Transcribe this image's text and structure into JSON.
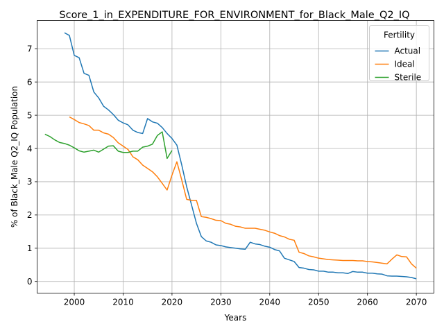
{
  "chart_data": {
    "type": "line",
    "title": "Score_1_in_EXPENDITURE_FOR_ENVIRONMENT_for_Black_Male_Q2_IQ",
    "xlabel": "Years",
    "ylabel": "% of Black_Male Q2_IQ Population",
    "xlim": [
      1992.4,
      2073.6
    ],
    "ylim": [
      -0.35,
      7.85
    ],
    "xticks": [
      2000,
      2010,
      2020,
      2030,
      2040,
      2050,
      2060,
      2070
    ],
    "yticks": [
      0,
      1,
      2,
      3,
      4,
      5,
      6,
      7
    ],
    "grid": true,
    "legend": {
      "title": "Fertility",
      "placement": "top-right"
    },
    "series": [
      {
        "name": "Actual",
        "color": "#1f77b4",
        "x": [
          1998,
          1999,
          2000,
          2001,
          2002,
          2003,
          2004,
          2005,
          2006,
          2007,
          2008,
          2009,
          2010,
          2011,
          2012,
          2013,
          2014,
          2015,
          2016,
          2017,
          2018,
          2019,
          2020,
          2021,
          2022,
          2023,
          2024,
          2025,
          2026,
          2027,
          2028,
          2029,
          2030,
          2031,
          2032,
          2033,
          2034,
          2035,
          2036,
          2037,
          2038,
          2039,
          2040,
          2041,
          2042,
          2043,
          2044,
          2045,
          2046,
          2047,
          2048,
          2049,
          2050,
          2051,
          2052,
          2053,
          2054,
          2055,
          2056,
          2057,
          2058,
          2059,
          2060,
          2061,
          2062,
          2063,
          2064,
          2065,
          2066,
          2067,
          2068,
          2069,
          2070
        ],
        "values": [
          7.48,
          7.4,
          6.8,
          6.73,
          6.26,
          6.2,
          5.7,
          5.52,
          5.27,
          5.16,
          5.02,
          4.85,
          4.77,
          4.71,
          4.55,
          4.48,
          4.45,
          4.9,
          4.8,
          4.76,
          4.63,
          4.45,
          4.3,
          4.1,
          3.5,
          2.85,
          2.3,
          1.75,
          1.35,
          1.22,
          1.18,
          1.1,
          1.08,
          1.04,
          1.02,
          1.0,
          0.98,
          0.97,
          1.18,
          1.13,
          1.11,
          1.06,
          1.03,
          0.96,
          0.92,
          0.7,
          0.65,
          0.6,
          0.42,
          0.4,
          0.36,
          0.35,
          0.31,
          0.31,
          0.28,
          0.28,
          0.26,
          0.26,
          0.24,
          0.3,
          0.28,
          0.28,
          0.25,
          0.25,
          0.23,
          0.22,
          0.17,
          0.16,
          0.16,
          0.15,
          0.14,
          0.12,
          0.08
        ]
      },
      {
        "name": "Ideal",
        "color": "#ff7f0e",
        "x": [
          1999,
          2000,
          2001,
          2002,
          2003,
          2004,
          2005,
          2006,
          2007,
          2008,
          2009,
          2010,
          2011,
          2012,
          2013,
          2014,
          2015,
          2016,
          2017,
          2018,
          2019,
          2020,
          2021,
          2022,
          2023,
          2024,
          2025,
          2026,
          2027,
          2028,
          2029,
          2030,
          2031,
          2032,
          2033,
          2034,
          2035,
          2036,
          2037,
          2038,
          2039,
          2040,
          2041,
          2042,
          2043,
          2044,
          2045,
          2046,
          2047,
          2048,
          2049,
          2050,
          2051,
          2052,
          2053,
          2054,
          2055,
          2056,
          2057,
          2058,
          2059,
          2060,
          2061,
          2062,
          2063,
          2064,
          2065,
          2066,
          2067,
          2068,
          2069,
          2070
        ],
        "values": [
          4.95,
          4.87,
          4.78,
          4.74,
          4.69,
          4.55,
          4.55,
          4.47,
          4.43,
          4.33,
          4.17,
          4.07,
          3.97,
          3.75,
          3.66,
          3.5,
          3.4,
          3.3,
          3.15,
          2.95,
          2.75,
          3.2,
          3.6,
          3.05,
          2.47,
          2.44,
          2.44,
          1.95,
          1.93,
          1.89,
          1.84,
          1.83,
          1.75,
          1.72,
          1.66,
          1.64,
          1.6,
          1.6,
          1.6,
          1.57,
          1.54,
          1.49,
          1.45,
          1.38,
          1.34,
          1.27,
          1.24,
          0.88,
          0.84,
          0.77,
          0.74,
          0.7,
          0.68,
          0.66,
          0.65,
          0.64,
          0.63,
          0.63,
          0.63,
          0.62,
          0.62,
          0.6,
          0.59,
          0.57,
          0.55,
          0.53,
          0.67,
          0.8,
          0.75,
          0.74,
          0.53,
          0.4
        ]
      },
      {
        "name": "Sterile",
        "color": "#2ca02c",
        "x": [
          1994,
          1995,
          1996,
          1997,
          1998,
          1999,
          2000,
          2001,
          2002,
          2003,
          2004,
          2005,
          2006,
          2007,
          2008,
          2009,
          2010,
          2011,
          2012,
          2013,
          2014,
          2015,
          2016,
          2017,
          2018,
          2019,
          2020
        ],
        "values": [
          4.43,
          4.36,
          4.26,
          4.18,
          4.15,
          4.1,
          4.02,
          3.93,
          3.89,
          3.92,
          3.95,
          3.89,
          3.98,
          4.07,
          4.08,
          3.92,
          3.88,
          3.88,
          3.92,
          3.92,
          4.04,
          4.07,
          4.13,
          4.39,
          4.5,
          3.7,
          3.94
        ]
      }
    ]
  }
}
